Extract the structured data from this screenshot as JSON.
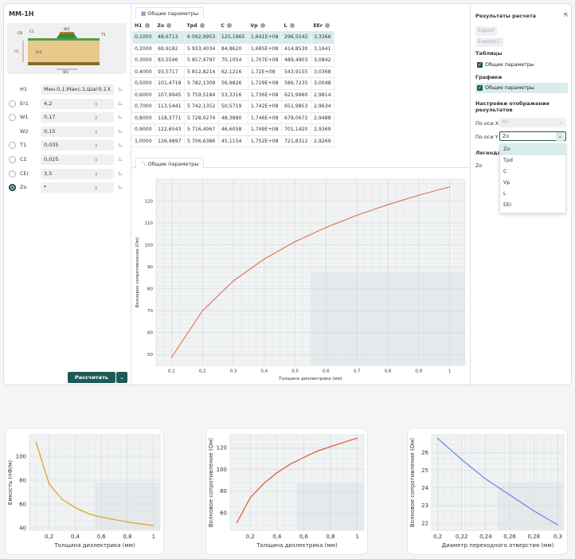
{
  "app_title": "MM-1H",
  "diagram": {
    "labels": [
      "СВ",
      "С1",
      "W2",
      "T1",
      "H1",
      "Er1",
      "W1"
    ]
  },
  "params": [
    {
      "label": "H1",
      "value": "Мин.0,1;Макс.1;Шаг0,1",
      "x": "X",
      "radio": false
    },
    {
      "label": "Er1",
      "value": "4,2",
      "radio": true
    },
    {
      "label": "W1",
      "value": "0,17",
      "radio": true
    },
    {
      "label": "W2",
      "value": "0,15",
      "radio": false
    },
    {
      "label": "T1",
      "value": "0,035",
      "radio": true
    },
    {
      "label": "C1",
      "value": "0,025",
      "radio": true
    },
    {
      "label": "CEr",
      "value": "3,5",
      "radio": true
    },
    {
      "label": "Zo",
      "value": "*",
      "radio": true,
      "selected": true
    }
  ],
  "calc_button": "Рассчитать",
  "table_tab": "Общие параметры",
  "table": {
    "headers": [
      "H1",
      "Zo",
      "Tpd",
      "C",
      "Vp",
      "L",
      "EEr"
    ],
    "rows": [
      [
        "0,1000",
        "48,6713",
        "6 092,9953",
        "125,1865",
        "1,641E+08",
        "296,5542",
        "3,3366"
      ],
      [
        "0,2000",
        "69,9182",
        "5 933,4034",
        "84,8620",
        "1,685E+08",
        "414,8530",
        "3,1641"
      ],
      [
        "0,3000",
        "83,5596",
        "5 857,9797",
        "70,1054",
        "1,707E+08",
        "489,4903",
        "3,0842"
      ],
      [
        "0,4000",
        "93,5717",
        "5 812,8214",
        "62,1216",
        "1,72E+08",
        "543,9155",
        "3,0368"
      ],
      [
        "0,5000",
        "101,4718",
        "5 782,1309",
        "56,9826",
        "1,729E+08",
        "586,7235",
        "3,0048"
      ],
      [
        "0,6000",
        "107,9945",
        "5 759,5184",
        "53,3316",
        "1,736E+08",
        "621,9960",
        "2,9814"
      ],
      [
        "0,7000",
        "113,5441",
        "5 742,1352",
        "50,5719",
        "1,742E+08",
        "651,9853",
        "2,9634"
      ],
      [
        "0,8000",
        "118,3771",
        "5 728,0274",
        "48,3880",
        "1,746E+08",
        "678,0672",
        "2,9488"
      ],
      [
        "0,9000",
        "122,6543",
        "5 716,4067",
        "46,6058",
        "1,749E+08",
        "701,1420",
        "2,9369"
      ],
      [
        "1,0000",
        "126,4897",
        "5 706,6386",
        "45,1154",
        "1,752E+08",
        "721,8312",
        "2,9269"
      ]
    ]
  },
  "chart_tab": "Общие параметры",
  "right": {
    "title": "Результаты расчета",
    "export": "Export",
    "export_lc": "ExportLC",
    "tables_title": "Таблицы",
    "tables_check": "Общие параметры",
    "graphs_title": "Графики",
    "graphs_check": "Общие параметры",
    "settings_title": "Настройки отображения результатов",
    "axis_x_label": "По оси X",
    "axis_x_value": "H1",
    "axis_y_label": "По оси Y",
    "axis_y_value": "Zo",
    "legend_label": "Легенда",
    "legend_value": "Zo",
    "dropdown": [
      "Zo",
      "Tpd",
      "C",
      "Vp",
      "L",
      "EEr"
    ]
  },
  "chart_data": [
    {
      "type": "line",
      "x": [
        0.1,
        0.2,
        0.3,
        0.4,
        0.5,
        0.6,
        0.7,
        0.8,
        0.9,
        1.0
      ],
      "values": [
        48.67,
        69.92,
        83.56,
        93.57,
        101.47,
        107.99,
        113.54,
        118.38,
        122.65,
        126.49
      ],
      "xlabel": "Толщина диэлектрика (мм)",
      "ylabel": "Волновое сопротивление (Ом)",
      "xlim": [
        0.05,
        1.05
      ],
      "ylim": [
        45,
        130
      ],
      "xticks": [
        "0,1",
        "0,2",
        "0,3",
        "0,4",
        "0,5",
        "0,6",
        "0,7",
        "0,8",
        "0,9",
        "1"
      ],
      "yticks": [
        "50",
        "60",
        "70",
        "80",
        "90",
        "100",
        "110",
        "120"
      ],
      "color": "#e0623a"
    },
    {
      "type": "line",
      "x": [
        0.1,
        0.2,
        0.3,
        0.4,
        0.5,
        0.6,
        0.7,
        0.8,
        0.9,
        1.0
      ],
      "values": [
        112,
        77,
        64,
        57,
        52,
        49,
        47,
        45,
        43.5,
        42
      ],
      "xlabel": "Толщина диэлектрика (мм)",
      "ylabel": "Емкость (пФ/м)",
      "xlim": [
        0.05,
        1.05
      ],
      "ylim": [
        38,
        118
      ],
      "xticks": [
        "0,2",
        "0,4",
        "0,6",
        "0,8",
        "1"
      ],
      "yticks": [
        "40",
        "60",
        "80",
        "100"
      ],
      "color": "#e0a62a"
    },
    {
      "type": "line",
      "x": [
        0.1,
        0.2,
        0.3,
        0.4,
        0.5,
        0.6,
        0.7,
        0.8,
        0.9,
        1.0
      ],
      "values": [
        51,
        74,
        87,
        97,
        105,
        111,
        117,
        121,
        125,
        129
      ],
      "xlabel": "Толщина диэлектрика (мм)",
      "ylabel": "Волновое сопротивление (Ом)",
      "xlim": [
        0.05,
        1.05
      ],
      "ylim": [
        44,
        132
      ],
      "xticks": [
        "0,2",
        "0,4",
        "0,6",
        "0,8",
        "1"
      ],
      "yticks": [
        "60",
        "80",
        "100",
        "120"
      ],
      "color": "#e0623a"
    },
    {
      "type": "line",
      "x": [
        0.2,
        0.22,
        0.24,
        0.26,
        0.28,
        0.3
      ],
      "values": [
        26.8,
        25.6,
        24.5,
        23.6,
        22.7,
        21.9
      ],
      "xlabel": "Диаметр переходного отверстия (мм)",
      "ylabel": "Волновое сопротивление (Ом)",
      "xlim": [
        0.195,
        0.305
      ],
      "ylim": [
        21.6,
        27
      ],
      "xticks": [
        "0,2",
        "0,22",
        "0,24",
        "0,26",
        "0,28",
        "0,3"
      ],
      "yticks": [
        "22",
        "23",
        "24",
        "25",
        "26"
      ],
      "color": "#6d8fe6"
    }
  ]
}
